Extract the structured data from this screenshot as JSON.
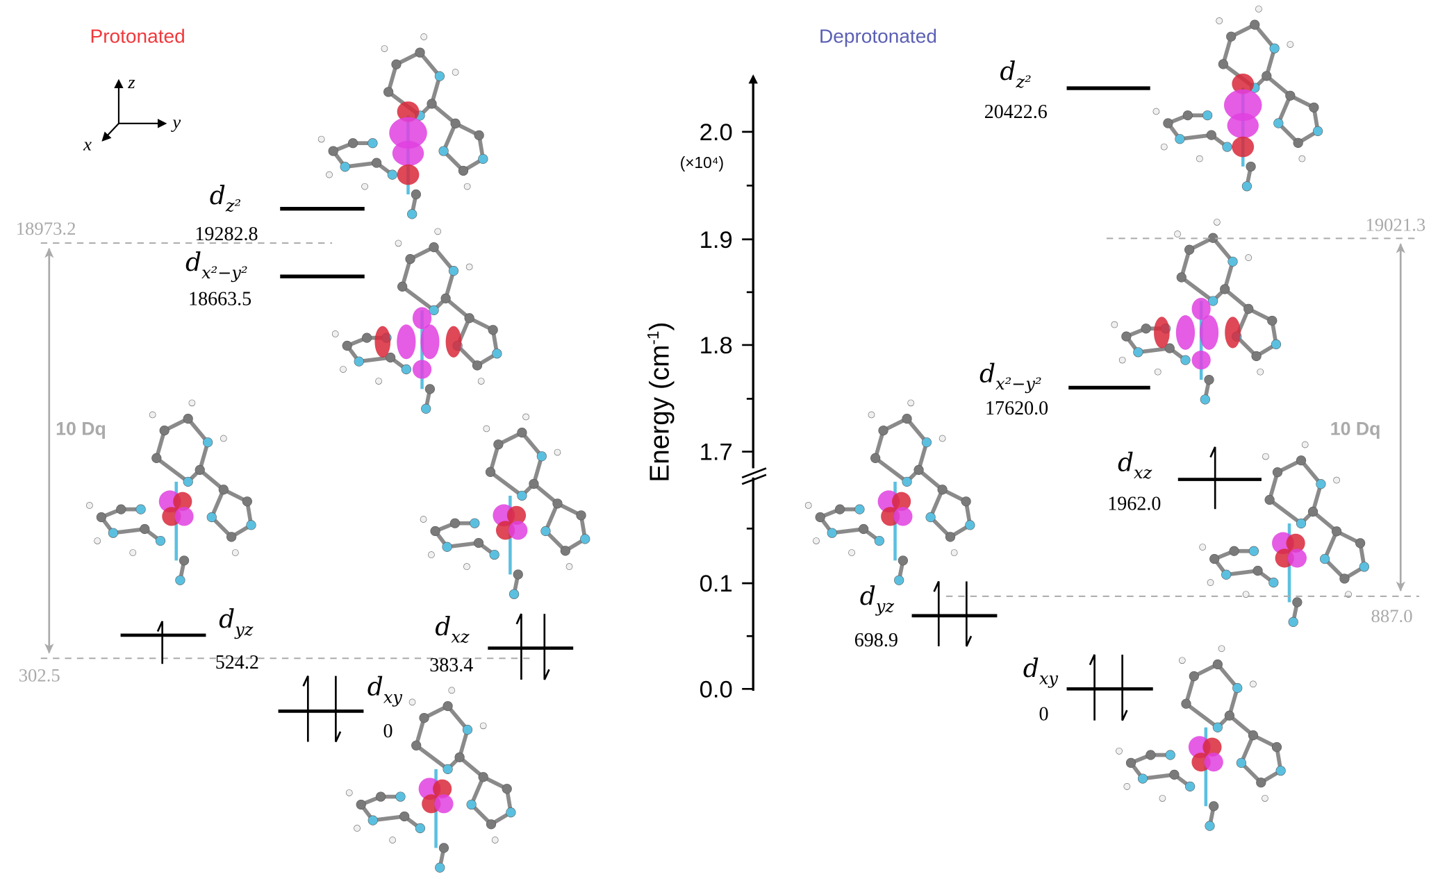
{
  "titles": {
    "protonated": "Protonated",
    "deprotonated": "Deprotonated"
  },
  "colors": {
    "protonated": "#f0383c",
    "deprotonated": "#5b60b4",
    "reference": "#aaaaaa",
    "lobe_red": "#d8283a",
    "lobe_magenta": "#e040e0"
  },
  "axes_triad": {
    "z": "z",
    "y": "y",
    "x": "x"
  },
  "energy_axis": {
    "label": "Energy (cm",
    "label_sup": "-1",
    "label_close": ")",
    "multiplier": "(×10⁴)",
    "ticks": [
      "2.0",
      "1.9",
      "1.8",
      "1.7",
      "0.1",
      "0.0"
    ],
    "axis_break": true
  },
  "protonated": {
    "levels": [
      {
        "orbital": "d",
        "sub": "z²",
        "value": "19282.8",
        "electrons": 0
      },
      {
        "orbital": "d",
        "sub": "x²−y²",
        "value": "18663.5",
        "electrons": 0
      },
      {
        "orbital": "d",
        "sub": "yz",
        "value": "524.2",
        "electrons": 1
      },
      {
        "orbital": "d",
        "sub": "xz",
        "value": "383.4",
        "electrons": 2
      },
      {
        "orbital": "d",
        "sub": "xy",
        "value": "0",
        "electrons": 2
      }
    ],
    "eg_average": "18973.2",
    "t2g_average": "302.5",
    "splitting_label": "10 Dq"
  },
  "deprotonated": {
    "levels": [
      {
        "orbital": "d",
        "sub": "z²",
        "value": "20422.6",
        "electrons": 0
      },
      {
        "orbital": "d",
        "sub": "x²−y²",
        "value": "17620.0",
        "electrons": 0
      },
      {
        "orbital": "d",
        "sub": "xz",
        "value": "1962.0",
        "electrons": 1
      },
      {
        "orbital": "d",
        "sub": "yz",
        "value": "698.9",
        "electrons": 2
      },
      {
        "orbital": "d",
        "sub": "xy",
        "value": "0",
        "electrons": 2
      }
    ],
    "eg_average": "19021.3",
    "t2g_average": "887.0",
    "splitting_label": "10 Dq"
  }
}
